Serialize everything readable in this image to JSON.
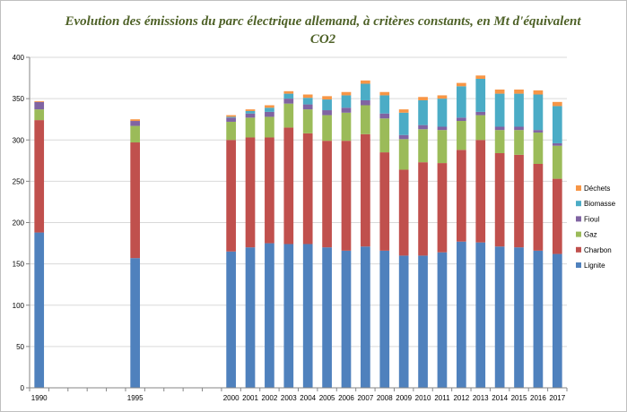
{
  "chart_data": {
    "type": "bar",
    "stacked": true,
    "title": "Evolution des émissions du parc électrique allemand, à critères constants, en Mt d'équivalent CO2",
    "xlabel": "",
    "ylabel": "",
    "ylim": [
      0,
      400
    ],
    "yticks": [
      "0",
      "50",
      "100",
      "150",
      "200",
      "250",
      "300",
      "350",
      "400"
    ],
    "grid": "horizontal",
    "legend_position": "right",
    "categories": [
      "1990",
      "1995",
      "2000",
      "2001",
      "2002",
      "2003",
      "2004",
      "2005",
      "2006",
      "2007",
      "2008",
      "2009",
      "2010",
      "2011",
      "2012",
      "2013",
      "2014",
      "2015",
      "2016",
      "2017"
    ],
    "x": [
      1990,
      1995,
      2000,
      2001,
      2002,
      2003,
      2004,
      2005,
      2006,
      2007,
      2008,
      2009,
      2010,
      2011,
      2012,
      2013,
      2014,
      2015,
      2016,
      2017
    ],
    "series": [
      {
        "name": "Lignite",
        "color": "#4f81bd",
        "values": [
          188,
          157,
          165,
          170,
          175,
          174,
          174,
          170,
          166,
          171,
          166,
          160,
          160,
          164,
          177,
          176,
          171,
          170,
          166,
          162
        ]
      },
      {
        "name": "Charbon",
        "color": "#c0504d",
        "values": [
          136,
          140,
          135,
          133,
          128,
          141,
          134,
          129,
          133,
          136,
          119,
          104,
          113,
          108,
          111,
          124,
          113,
          112,
          105,
          91
        ]
      },
      {
        "name": "Gaz",
        "color": "#9bbb59",
        "values": [
          13,
          20,
          22,
          24,
          25,
          29,
          29,
          31,
          34,
          35,
          41,
          37,
          40,
          40,
          35,
          30,
          28,
          30,
          38,
          40
        ]
      },
      {
        "name": "Fioul",
        "color": "#8064a2",
        "values": [
          9,
          6,
          5,
          5,
          6,
          6,
          6,
          6,
          6,
          6,
          6,
          5,
          5,
          4,
          4,
          4,
          4,
          4,
          3,
          3
        ]
      },
      {
        "name": "Biomasse",
        "color": "#4bacc6",
        "values": [
          0,
          0,
          1,
          3,
          5,
          6,
          8,
          13,
          15,
          20,
          22,
          27,
          30,
          34,
          38,
          40,
          40,
          40,
          43,
          45
        ]
      },
      {
        "name": "Déchets",
        "color": "#f79646",
        "values": [
          1,
          2,
          2,
          2,
          3,
          3,
          4,
          4,
          4,
          4,
          4,
          4,
          4,
          4,
          4,
          4,
          5,
          5,
          5,
          5
        ]
      }
    ]
  }
}
